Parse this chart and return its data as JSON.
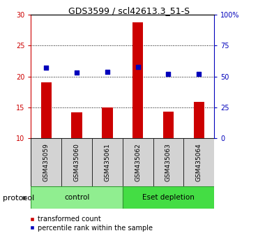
{
  "title": "GDS3599 / scl42613.3_51-S",
  "samples": [
    "GSM435059",
    "GSM435060",
    "GSM435061",
    "GSM435062",
    "GSM435063",
    "GSM435064"
  ],
  "transformed_counts": [
    19.1,
    14.2,
    15.0,
    28.8,
    14.3,
    15.9
  ],
  "percentile_ranks_right": [
    57,
    53,
    54,
    58,
    52,
    52
  ],
  "ylim_left": [
    10,
    30
  ],
  "ylim_right": [
    0,
    100
  ],
  "yticks_left": [
    10,
    15,
    20,
    25,
    30
  ],
  "yticks_right": [
    0,
    25,
    50,
    75,
    100
  ],
  "ytick_labels_right": [
    "0",
    "25",
    "50",
    "75",
    "100%"
  ],
  "bar_color": "#cc0000",
  "dot_color": "#0000bb",
  "bar_bottom": 10,
  "control_color": "#90ee90",
  "eset_color": "#44dd44",
  "protocol_label": "protocol",
  "control_label": "control",
  "eset_label": "Eset depletion",
  "legend_bar_label": "transformed count",
  "legend_dot_label": "percentile rank within the sample",
  "left_axis_color": "#cc0000",
  "right_axis_color": "#0000bb",
  "bar_width": 0.35,
  "dot_size": 25,
  "title_fontsize": 9,
  "tick_fontsize": 7,
  "label_fontsize": 6.5,
  "proto_fontsize": 7.5,
  "legend_fontsize": 7
}
